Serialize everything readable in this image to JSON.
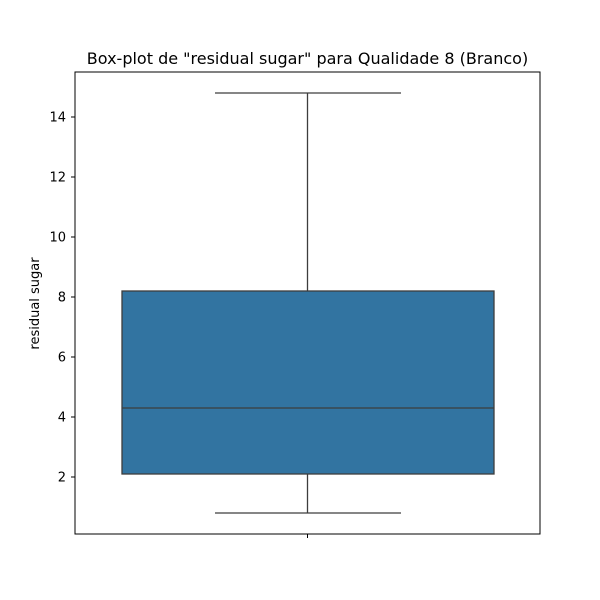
{
  "chart_data": {
    "type": "box",
    "title": "Box-plot de \"residual sugar\" para Qualidade 8 (Branco)",
    "xlabel": "",
    "ylabel": "residual sugar",
    "ylim": [
      0.1,
      15.5
    ],
    "yticks": [
      2,
      4,
      6,
      8,
      10,
      12,
      14
    ],
    "grid": false,
    "series": [
      {
        "whisker_low": 0.8,
        "q1": 2.1,
        "median": 4.3,
        "q3": 8.2,
        "whisker_high": 14.8
      }
    ],
    "colors": {
      "box_fill": "#3274a1",
      "line": "#3d3d3d"
    }
  }
}
